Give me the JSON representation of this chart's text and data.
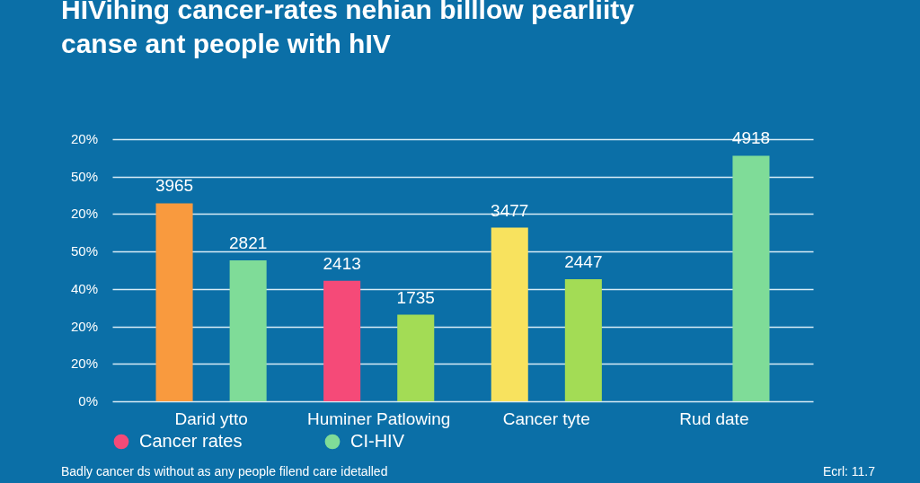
{
  "chart_data": {
    "type": "bar",
    "title": "HIVihing cancer-rates nehian billlow pearliity\ncanse ant people with hIV",
    "categories": [
      "Darid ytto",
      "Huminer Patlowing",
      "Cancer tyte",
      "Rud date"
    ],
    "series": [
      {
        "name": "Cancer rates",
        "color": "#f54a78",
        "colors": [
          "#f99a3e",
          "#f54a78",
          "#f8e25e",
          null
        ],
        "values": [
          3965,
          2413,
          3477,
          null
        ]
      },
      {
        "name": "CI-HIV",
        "color": "#7fdc98",
        "colors": [
          "#7fdc98",
          "#a3dc55",
          "#a3dc55",
          "#7fdc98"
        ],
        "values": [
          2821,
          1735,
          2447,
          4918
        ]
      }
    ],
    "data_labels": true,
    "ylim": [
      0,
      5250
    ],
    "yticks": [
      {
        "value": 0,
        "label": null
      },
      {
        "value": 750,
        "label": null
      },
      {
        "value": 1500,
        "label": null
      },
      {
        "value": 2250,
        "label": null
      },
      {
        "value": 3000,
        "label": null
      },
      {
        "value": 3750,
        "label": null
      },
      {
        "value": 4500,
        "label": null
      },
      {
        "value": 5250,
        "label": null
      }
    ],
    "grid": "y",
    "legend": "bottom",
    "annotations": [
      "0%",
      "20%",
      "20%",
      "40%",
      "50%",
      "20%",
      "50%",
      "20%",
      "Badly cancer ds without as any people filend care idetalled",
      "Ecrl: 11.7"
    ]
  }
}
